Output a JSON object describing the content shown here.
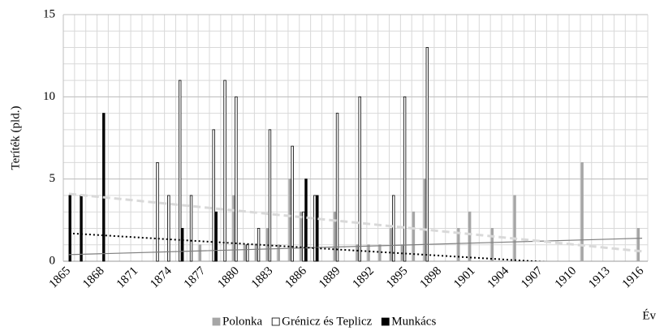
{
  "chart_data": {
    "type": "bar",
    "ylabel": "Teríték (pld.)",
    "xlabel": "Év",
    "x": [
      1865,
      1866,
      1867,
      1868,
      1869,
      1870,
      1871,
      1872,
      1873,
      1874,
      1875,
      1876,
      1877,
      1878,
      1879,
      1880,
      1881,
      1882,
      1883,
      1884,
      1885,
      1886,
      1887,
      1888,
      1889,
      1890,
      1891,
      1892,
      1893,
      1894,
      1895,
      1896,
      1897,
      1898,
      1899,
      1900,
      1901,
      1902,
      1903,
      1904,
      1905,
      1906,
      1907,
      1908,
      1909,
      1910,
      1911,
      1912,
      1913,
      1914,
      1915,
      1916
    ],
    "xlim": [
      1864.5,
      1916.5
    ],
    "xticks": [
      1865,
      1868,
      1871,
      1874,
      1877,
      1880,
      1883,
      1886,
      1889,
      1892,
      1895,
      1898,
      1901,
      1904,
      1907,
      1910,
      1913,
      1916
    ],
    "ylim": [
      0,
      15
    ],
    "yticks": [
      0,
      5,
      10,
      15
    ],
    "y_minor_step": 1,
    "grid": true,
    "legend": "bottom",
    "series": [
      {
        "name": "Polonka",
        "color": "#a6a6a6",
        "stroke": "#a6a6a6",
        "values": [
          null,
          null,
          null,
          null,
          null,
          null,
          null,
          null,
          null,
          null,
          null,
          null,
          1,
          null,
          null,
          4,
          1,
          1,
          2,
          1,
          5,
          3,
          null,
          null,
          3,
          null,
          1,
          1,
          1,
          2,
          1,
          3,
          5,
          null,
          null,
          2,
          3,
          null,
          2,
          null,
          4,
          null,
          null,
          null,
          null,
          null,
          6,
          null,
          null,
          null,
          null,
          2
        ],
        "trend": {
          "values": [
            0.4,
            1.4
          ],
          "color": "#7f7f7f",
          "dash": "none",
          "width": 1.2
        }
      },
      {
        "name": "Grénicz és Teplicz",
        "color": "#ffffff",
        "stroke": "#000000",
        "values": [
          null,
          null,
          null,
          null,
          null,
          null,
          null,
          null,
          6,
          4,
          11,
          4,
          null,
          8,
          11,
          10,
          1,
          2,
          8,
          null,
          7,
          3,
          4,
          null,
          9,
          null,
          10,
          null,
          null,
          4,
          10,
          null,
          13,
          null,
          null,
          null,
          null,
          null,
          null,
          null,
          null,
          null,
          null,
          null,
          null,
          null,
          null,
          null,
          null,
          null,
          null,
          null
        ],
        "trend": {
          "values": [
            4.1,
            0.6
          ],
          "color": "#d9d9d9",
          "dash": "9 5",
          "width": 3
        }
      },
      {
        "name": "Munkács",
        "color": "#000000",
        "stroke": "#000000",
        "values": [
          4,
          4,
          null,
          9,
          null,
          null,
          null,
          null,
          null,
          null,
          2,
          null,
          null,
          3,
          null,
          null,
          null,
          null,
          null,
          null,
          null,
          5,
          4,
          null,
          null,
          null,
          null,
          null,
          null,
          null,
          null,
          null,
          null,
          null,
          null,
          null,
          null,
          null,
          null,
          null,
          null,
          null,
          null,
          null,
          null,
          null,
          null,
          null,
          null,
          null,
          null,
          null
        ],
        "trend": {
          "values": [
            1.7,
            -0.4
          ],
          "color": "#000000",
          "dash": "2 3",
          "width": 2
        }
      }
    ]
  }
}
